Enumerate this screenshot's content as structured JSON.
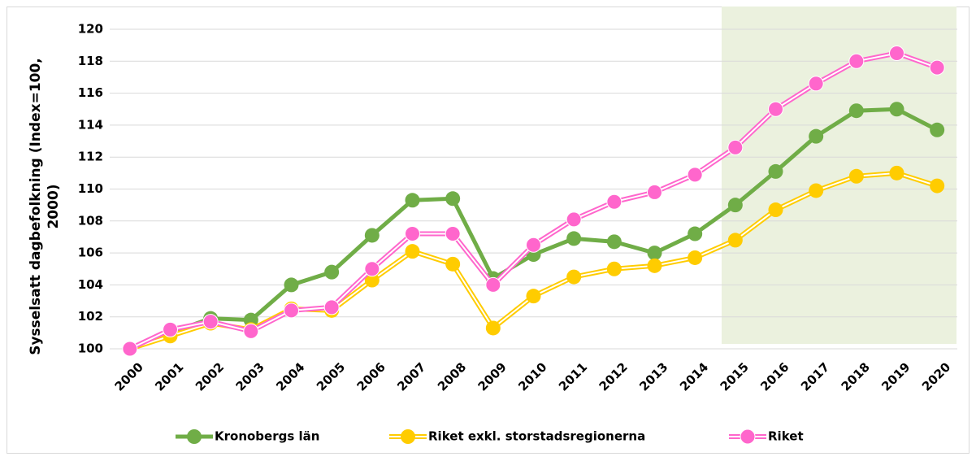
{
  "chart_data": {
    "type": "line",
    "y_label": "Sysselsatt dagbefolkning (Index=100, 2000)",
    "categories": [
      "2000",
      "2001",
      "2002",
      "2003",
      "2004",
      "2005",
      "2006",
      "2007",
      "2008",
      "2009",
      "2010",
      "2011",
      "2012",
      "2013",
      "2014",
      "2015",
      "2016",
      "2017",
      "2018",
      "2019",
      "2020"
    ],
    "series": [
      {
        "name": "Kronobergs län",
        "color": "#70ad47",
        "values": [
          100,
          101.0,
          101.9,
          101.8,
          104.0,
          104.8,
          107.1,
          109.3,
          109.4,
          104.4,
          105.9,
          106.9,
          106.7,
          106.0,
          107.2,
          109.0,
          111.1,
          113.3,
          114.9,
          115.0,
          113.7
        ]
      },
      {
        "name": "Riket exkl. storstadsregionerna",
        "color": "#ffcc00",
        "values": [
          100,
          100.8,
          101.6,
          101.2,
          102.5,
          102.4,
          104.3,
          106.1,
          105.3,
          101.3,
          103.3,
          104.5,
          105.0,
          105.2,
          105.7,
          106.8,
          108.7,
          109.9,
          110.8,
          111.0,
          110.2
        ]
      },
      {
        "name": "Riket",
        "color": "#ff66cc",
        "values": [
          100,
          101.2,
          101.7,
          101.1,
          102.4,
          102.6,
          105.0,
          107.2,
          107.2,
          104.0,
          106.5,
          108.1,
          109.2,
          109.8,
          110.9,
          112.6,
          115.0,
          116.6,
          118.0,
          118.5,
          117.6
        ]
      }
    ],
    "ylim": [
      100,
      120
    ],
    "yticks": [
      100,
      102,
      104,
      106,
      108,
      110,
      112,
      114,
      116,
      118,
      120
    ],
    "grid": true,
    "legend": "bottom"
  }
}
